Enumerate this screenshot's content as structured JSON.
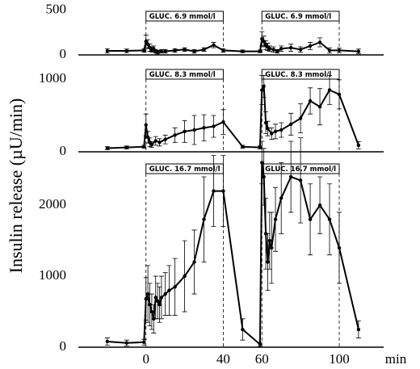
{
  "chart_data": [
    {
      "type": "line",
      "xlim": [
        -35,
        123
      ],
      "ylim": [
        0,
        540
      ],
      "yticks": [
        0,
        500
      ],
      "stimuli": [
        {
          "label": "GLUC. 6.9 mmol/l",
          "start": 0,
          "end": 40
        },
        {
          "label": "GLUC. 6.9 mmol/l",
          "start": 60,
          "end": 100
        }
      ],
      "x": [
        -20,
        -10,
        -1,
        0,
        1,
        2,
        3,
        4,
        5,
        6,
        8,
        10,
        15,
        20,
        25,
        30,
        35,
        40,
        50,
        59,
        60,
        61,
        62,
        63,
        64,
        66,
        68,
        70,
        75,
        80,
        85,
        90,
        95,
        100,
        110
      ],
      "values": [
        45,
        45,
        50,
        150,
        120,
        80,
        60,
        70,
        40,
        30,
        40,
        40,
        50,
        60,
        40,
        60,
        110,
        50,
        40,
        40,
        180,
        150,
        110,
        90,
        70,
        60,
        40,
        70,
        80,
        60,
        100,
        140,
        50,
        50,
        40
      ],
      "errors": [
        25,
        20,
        20,
        70,
        50,
        40,
        30,
        30,
        20,
        20,
        20,
        20,
        20,
        20,
        20,
        20,
        30,
        20,
        15,
        15,
        80,
        60,
        50,
        40,
        30,
        30,
        20,
        30,
        40,
        30,
        40,
        50,
        30,
        25,
        25
      ]
    },
    {
      "type": "line",
      "ylabel": "Insulin release (µU/min)",
      "xlim": [
        -35,
        123
      ],
      "ylim": [
        0,
        1200
      ],
      "yticks": [
        0,
        1000
      ],
      "stimuli": [
        {
          "label": "GLUC. 8.3 mmol/l",
          "start": 0,
          "end": 40
        },
        {
          "label": "GLUC. 8.3 mmol/l",
          "start": 60,
          "end": 100
        }
      ],
      "x": [
        -20,
        -10,
        -1,
        0,
        1,
        2,
        3,
        5,
        7,
        10,
        15,
        20,
        25,
        30,
        35,
        40,
        50,
        59,
        60,
        61,
        62,
        63,
        65,
        67,
        70,
        75,
        80,
        85,
        90,
        95,
        100,
        110
      ],
      "values": [
        50,
        60,
        70,
        370,
        200,
        130,
        100,
        150,
        130,
        170,
        230,
        280,
        300,
        330,
        350,
        410,
        70,
        60,
        850,
        900,
        400,
        320,
        250,
        280,
        300,
        380,
        460,
        700,
        620,
        850,
        790,
        90
      ],
      "errors": [
        20,
        20,
        20,
        150,
        80,
        60,
        40,
        60,
        50,
        60,
        100,
        150,
        200,
        180,
        150,
        170,
        20,
        20,
        200,
        150,
        150,
        100,
        80,
        100,
        100,
        150,
        200,
        180,
        250,
        200,
        200,
        50
      ]
    },
    {
      "type": "line",
      "xlabel": "min",
      "xlim": [
        -35,
        123
      ],
      "xticks": [
        0,
        40,
        60,
        100
      ],
      "ylim": [
        0,
        2650
      ],
      "yticks": [
        0,
        1000,
        2000
      ],
      "stimuli": [
        {
          "label": "GLUC. 16.7 mmol/l",
          "start": 0,
          "end": 40
        },
        {
          "label": "GLUC. 16.7 mmol/l",
          "start": 60,
          "end": 100
        }
      ],
      "x": [
        -20,
        -10,
        -1,
        0,
        1,
        2,
        3,
        4,
        5,
        6,
        7,
        8,
        10,
        12,
        15,
        20,
        25,
        30,
        35,
        40,
        50,
        59,
        60,
        61,
        62,
        63,
        64,
        65,
        67,
        70,
        75,
        80,
        85,
        90,
        95,
        100,
        110
      ],
      "values": [
        80,
        60,
        70,
        680,
        750,
        600,
        500,
        400,
        700,
        650,
        600,
        700,
        750,
        800,
        850,
        1000,
        1200,
        1800,
        2200,
        2200,
        250,
        40,
        2600,
        2400,
        1600,
        1200,
        1500,
        1400,
        1800,
        2100,
        2400,
        2350,
        1800,
        2000,
        1800,
        1400,
        250
      ],
      "errors": [
        50,
        40,
        40,
        300,
        400,
        300,
        250,
        200,
        300,
        250,
        250,
        300,
        300,
        350,
        400,
        500,
        450,
        600,
        500,
        500,
        150,
        30,
        300,
        400,
        500,
        400,
        400,
        500,
        450,
        500,
        500,
        600,
        500,
        400,
        500,
        500,
        120
      ]
    }
  ]
}
